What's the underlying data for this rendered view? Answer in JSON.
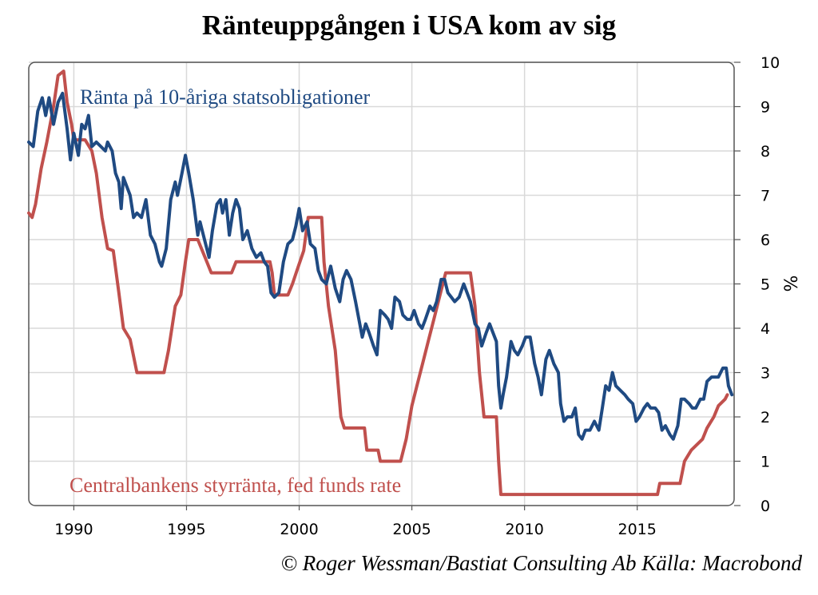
{
  "page": {
    "footer": "© Roger Wessman/Bastiat Consulting Ab   Källa: Macrobond"
  },
  "colors": {
    "treasury_10y": "#1f4a82",
    "fed_funds": "#c0504d",
    "grid": "#d9d9d9",
    "frame": "#555555"
  },
  "chart_data": {
    "type": "line",
    "title": "Ränteuppgången i USA kom av sig",
    "ylabel": "%",
    "y_axis_side": "right",
    "xlim": [
      1988,
      2019.3
    ],
    "ylim": [
      0,
      10
    ],
    "x_ticks": [
      1990,
      1995,
      2000,
      2005,
      2010,
      2015
    ],
    "y_ticks": [
      0,
      1,
      2,
      3,
      4,
      5,
      6,
      7,
      8,
      9,
      10
    ],
    "grid": true,
    "series": [
      {
        "name": "Ränta på 10-åriga statsobligationer",
        "color": "#1f4a82",
        "points": [
          [
            1988.0,
            8.2
          ],
          [
            1988.2,
            8.1
          ],
          [
            1988.4,
            8.9
          ],
          [
            1988.6,
            9.2
          ],
          [
            1988.75,
            8.8
          ],
          [
            1988.9,
            9.2
          ],
          [
            1989.1,
            8.6
          ],
          [
            1989.3,
            9.1
          ],
          [
            1989.5,
            9.3
          ],
          [
            1989.7,
            8.5
          ],
          [
            1989.85,
            7.8
          ],
          [
            1990.0,
            8.4
          ],
          [
            1990.2,
            7.9
          ],
          [
            1990.35,
            8.6
          ],
          [
            1990.5,
            8.5
          ],
          [
            1990.65,
            8.8
          ],
          [
            1990.8,
            8.1
          ],
          [
            1991.0,
            8.2
          ],
          [
            1991.2,
            8.1
          ],
          [
            1991.4,
            8.0
          ],
          [
            1991.5,
            8.2
          ],
          [
            1991.7,
            8.0
          ],
          [
            1991.85,
            7.5
          ],
          [
            1992.0,
            7.3
          ],
          [
            1992.1,
            6.7
          ],
          [
            1992.2,
            7.4
          ],
          [
            1992.35,
            7.2
          ],
          [
            1992.5,
            7.0
          ],
          [
            1992.65,
            6.5
          ],
          [
            1992.8,
            6.6
          ],
          [
            1993.0,
            6.5
          ],
          [
            1993.2,
            6.9
          ],
          [
            1993.4,
            6.1
          ],
          [
            1993.6,
            5.9
          ],
          [
            1993.8,
            5.5
          ],
          [
            1993.9,
            5.4
          ],
          [
            1994.1,
            5.8
          ],
          [
            1994.3,
            6.9
          ],
          [
            1994.5,
            7.3
          ],
          [
            1994.6,
            7.0
          ],
          [
            1994.8,
            7.5
          ],
          [
            1994.95,
            7.9
          ],
          [
            1995.1,
            7.5
          ],
          [
            1995.3,
            6.9
          ],
          [
            1995.5,
            6.1
          ],
          [
            1995.6,
            6.4
          ],
          [
            1995.8,
            6.0
          ],
          [
            1996.0,
            5.6
          ],
          [
            1996.15,
            6.2
          ],
          [
            1996.35,
            6.8
          ],
          [
            1996.5,
            6.9
          ],
          [
            1996.6,
            6.6
          ],
          [
            1996.75,
            6.9
          ],
          [
            1996.9,
            6.1
          ],
          [
            1997.05,
            6.6
          ],
          [
            1997.2,
            6.9
          ],
          [
            1997.35,
            6.7
          ],
          [
            1997.5,
            6.0
          ],
          [
            1997.7,
            6.2
          ],
          [
            1997.9,
            5.8
          ],
          [
            1998.1,
            5.6
          ],
          [
            1998.3,
            5.7
          ],
          [
            1998.45,
            5.5
          ],
          [
            1998.6,
            5.4
          ],
          [
            1998.75,
            4.8
          ],
          [
            1998.9,
            4.7
          ],
          [
            1999.1,
            4.8
          ],
          [
            1999.3,
            5.5
          ],
          [
            1999.5,
            5.9
          ],
          [
            1999.7,
            6.0
          ],
          [
            1999.85,
            6.3
          ],
          [
            2000.0,
            6.7
          ],
          [
            2000.15,
            6.2
          ],
          [
            2000.35,
            6.4
          ],
          [
            2000.5,
            5.9
          ],
          [
            2000.7,
            5.8
          ],
          [
            2000.85,
            5.3
          ],
          [
            2001.0,
            5.1
          ],
          [
            2001.2,
            5.0
          ],
          [
            2001.4,
            5.4
          ],
          [
            2001.6,
            4.9
          ],
          [
            2001.8,
            4.6
          ],
          [
            2001.95,
            5.1
          ],
          [
            2002.1,
            5.3
          ],
          [
            2002.3,
            5.1
          ],
          [
            2002.5,
            4.6
          ],
          [
            2002.65,
            4.2
          ],
          [
            2002.8,
            3.8
          ],
          [
            2002.95,
            4.1
          ],
          [
            2003.1,
            3.9
          ],
          [
            2003.3,
            3.6
          ],
          [
            2003.45,
            3.4
          ],
          [
            2003.6,
            4.4
          ],
          [
            2003.8,
            4.3
          ],
          [
            2003.95,
            4.2
          ],
          [
            2004.1,
            4.0
          ],
          [
            2004.25,
            4.7
          ],
          [
            2004.45,
            4.6
          ],
          [
            2004.6,
            4.3
          ],
          [
            2004.8,
            4.2
          ],
          [
            2004.95,
            4.2
          ],
          [
            2005.1,
            4.4
          ],
          [
            2005.3,
            4.1
          ],
          [
            2005.45,
            4.0
          ],
          [
            2005.6,
            4.2
          ],
          [
            2005.8,
            4.5
          ],
          [
            2005.95,
            4.4
          ],
          [
            2006.1,
            4.6
          ],
          [
            2006.3,
            5.1
          ],
          [
            2006.45,
            5.1
          ],
          [
            2006.6,
            4.8
          ],
          [
            2006.75,
            4.7
          ],
          [
            2006.9,
            4.6
          ],
          [
            2007.1,
            4.7
          ],
          [
            2007.3,
            5.0
          ],
          [
            2007.45,
            4.8
          ],
          [
            2007.6,
            4.6
          ],
          [
            2007.8,
            4.1
          ],
          [
            2007.95,
            4.0
          ],
          [
            2008.1,
            3.6
          ],
          [
            2008.3,
            3.9
          ],
          [
            2008.45,
            4.1
          ],
          [
            2008.6,
            3.9
          ],
          [
            2008.75,
            3.7
          ],
          [
            2008.85,
            2.7
          ],
          [
            2008.95,
            2.2
          ],
          [
            2009.05,
            2.5
          ],
          [
            2009.2,
            2.9
          ],
          [
            2009.4,
            3.7
          ],
          [
            2009.55,
            3.5
          ],
          [
            2009.7,
            3.4
          ],
          [
            2009.9,
            3.6
          ],
          [
            2010.05,
            3.8
          ],
          [
            2010.25,
            3.8
          ],
          [
            2010.45,
            3.2
          ],
          [
            2010.6,
            2.9
          ],
          [
            2010.75,
            2.5
          ],
          [
            2010.95,
            3.3
          ],
          [
            2011.1,
            3.5
          ],
          [
            2011.3,
            3.2
          ],
          [
            2011.5,
            3.0
          ],
          [
            2011.6,
            2.3
          ],
          [
            2011.75,
            1.9
          ],
          [
            2011.9,
            2.0
          ],
          [
            2012.1,
            2.0
          ],
          [
            2012.25,
            2.2
          ],
          [
            2012.4,
            1.6
          ],
          [
            2012.55,
            1.5
          ],
          [
            2012.7,
            1.7
          ],
          [
            2012.9,
            1.7
          ],
          [
            2013.1,
            1.9
          ],
          [
            2013.3,
            1.7
          ],
          [
            2013.45,
            2.2
          ],
          [
            2013.6,
            2.7
          ],
          [
            2013.75,
            2.6
          ],
          [
            2013.9,
            3.0
          ],
          [
            2014.05,
            2.7
          ],
          [
            2014.25,
            2.6
          ],
          [
            2014.45,
            2.5
          ],
          [
            2014.6,
            2.4
          ],
          [
            2014.8,
            2.3
          ],
          [
            2014.95,
            1.9
          ],
          [
            2015.1,
            2.0
          ],
          [
            2015.3,
            2.2
          ],
          [
            2015.45,
            2.3
          ],
          [
            2015.6,
            2.2
          ],
          [
            2015.8,
            2.2
          ],
          [
            2015.95,
            2.1
          ],
          [
            2016.1,
            1.7
          ],
          [
            2016.25,
            1.8
          ],
          [
            2016.45,
            1.6
          ],
          [
            2016.6,
            1.5
          ],
          [
            2016.8,
            1.8
          ],
          [
            2016.95,
            2.4
          ],
          [
            2017.1,
            2.4
          ],
          [
            2017.3,
            2.3
          ],
          [
            2017.45,
            2.2
          ],
          [
            2017.6,
            2.2
          ],
          [
            2017.8,
            2.4
          ],
          [
            2017.95,
            2.4
          ],
          [
            2018.1,
            2.8
          ],
          [
            2018.3,
            2.9
          ],
          [
            2018.45,
            2.9
          ],
          [
            2018.6,
            2.9
          ],
          [
            2018.8,
            3.1
          ],
          [
            2018.95,
            3.1
          ],
          [
            2019.05,
            2.7
          ],
          [
            2019.2,
            2.5
          ]
        ]
      },
      {
        "name": "Centralbankens styrränta, fed funds rate",
        "color": "#c0504d",
        "points": [
          [
            1988.0,
            6.6
          ],
          [
            1988.15,
            6.5
          ],
          [
            1988.3,
            6.8
          ],
          [
            1988.55,
            7.6
          ],
          [
            1988.8,
            8.2
          ],
          [
            1989.1,
            9.0
          ],
          [
            1989.3,
            9.7
          ],
          [
            1989.55,
            9.8
          ],
          [
            1989.7,
            9.1
          ],
          [
            1989.9,
            8.6
          ],
          [
            1990.0,
            8.25
          ],
          [
            1990.5,
            8.25
          ],
          [
            1990.8,
            8.0
          ],
          [
            1991.0,
            7.5
          ],
          [
            1991.25,
            6.5
          ],
          [
            1991.5,
            5.8
          ],
          [
            1991.75,
            5.75
          ],
          [
            1992.0,
            4.8
          ],
          [
            1992.2,
            4.0
          ],
          [
            1992.5,
            3.75
          ],
          [
            1992.8,
            3.0
          ],
          [
            1993.0,
            3.0
          ],
          [
            1994.0,
            3.0
          ],
          [
            1994.2,
            3.5
          ],
          [
            1994.5,
            4.5
          ],
          [
            1994.75,
            4.75
          ],
          [
            1994.95,
            5.5
          ],
          [
            1995.1,
            6.0
          ],
          [
            1995.5,
            6.0
          ],
          [
            1995.9,
            5.5
          ],
          [
            1996.1,
            5.25
          ],
          [
            1997.0,
            5.25
          ],
          [
            1997.2,
            5.5
          ],
          [
            1998.0,
            5.5
          ],
          [
            1998.7,
            5.5
          ],
          [
            1998.8,
            5.25
          ],
          [
            1998.9,
            4.75
          ],
          [
            1999.5,
            4.75
          ],
          [
            1999.7,
            5.0
          ],
          [
            1999.9,
            5.3
          ],
          [
            2000.2,
            5.75
          ],
          [
            2000.4,
            6.5
          ],
          [
            2001.0,
            6.5
          ],
          [
            2001.1,
            5.5
          ],
          [
            2001.3,
            4.5
          ],
          [
            2001.6,
            3.5
          ],
          [
            2001.85,
            2.0
          ],
          [
            2002.0,
            1.75
          ],
          [
            2002.9,
            1.75
          ],
          [
            2003.0,
            1.25
          ],
          [
            2003.5,
            1.25
          ],
          [
            2003.6,
            1.0
          ],
          [
            2004.5,
            1.0
          ],
          [
            2004.75,
            1.5
          ],
          [
            2005.0,
            2.25
          ],
          [
            2005.25,
            2.75
          ],
          [
            2005.5,
            3.25
          ],
          [
            2005.75,
            3.75
          ],
          [
            2006.0,
            4.25
          ],
          [
            2006.25,
            4.75
          ],
          [
            2006.5,
            5.25
          ],
          [
            2007.6,
            5.25
          ],
          [
            2007.8,
            4.5
          ],
          [
            2008.0,
            3.0
          ],
          [
            2008.2,
            2.0
          ],
          [
            2008.75,
            2.0
          ],
          [
            2008.85,
            1.0
          ],
          [
            2008.95,
            0.25
          ],
          [
            2015.9,
            0.25
          ],
          [
            2016.0,
            0.5
          ],
          [
            2016.9,
            0.5
          ],
          [
            2017.1,
            1.0
          ],
          [
            2017.4,
            1.25
          ],
          [
            2017.9,
            1.5
          ],
          [
            2018.1,
            1.75
          ],
          [
            2018.4,
            2.0
          ],
          [
            2018.6,
            2.25
          ],
          [
            2018.9,
            2.4
          ],
          [
            2019.0,
            2.5
          ]
        ]
      }
    ]
  }
}
